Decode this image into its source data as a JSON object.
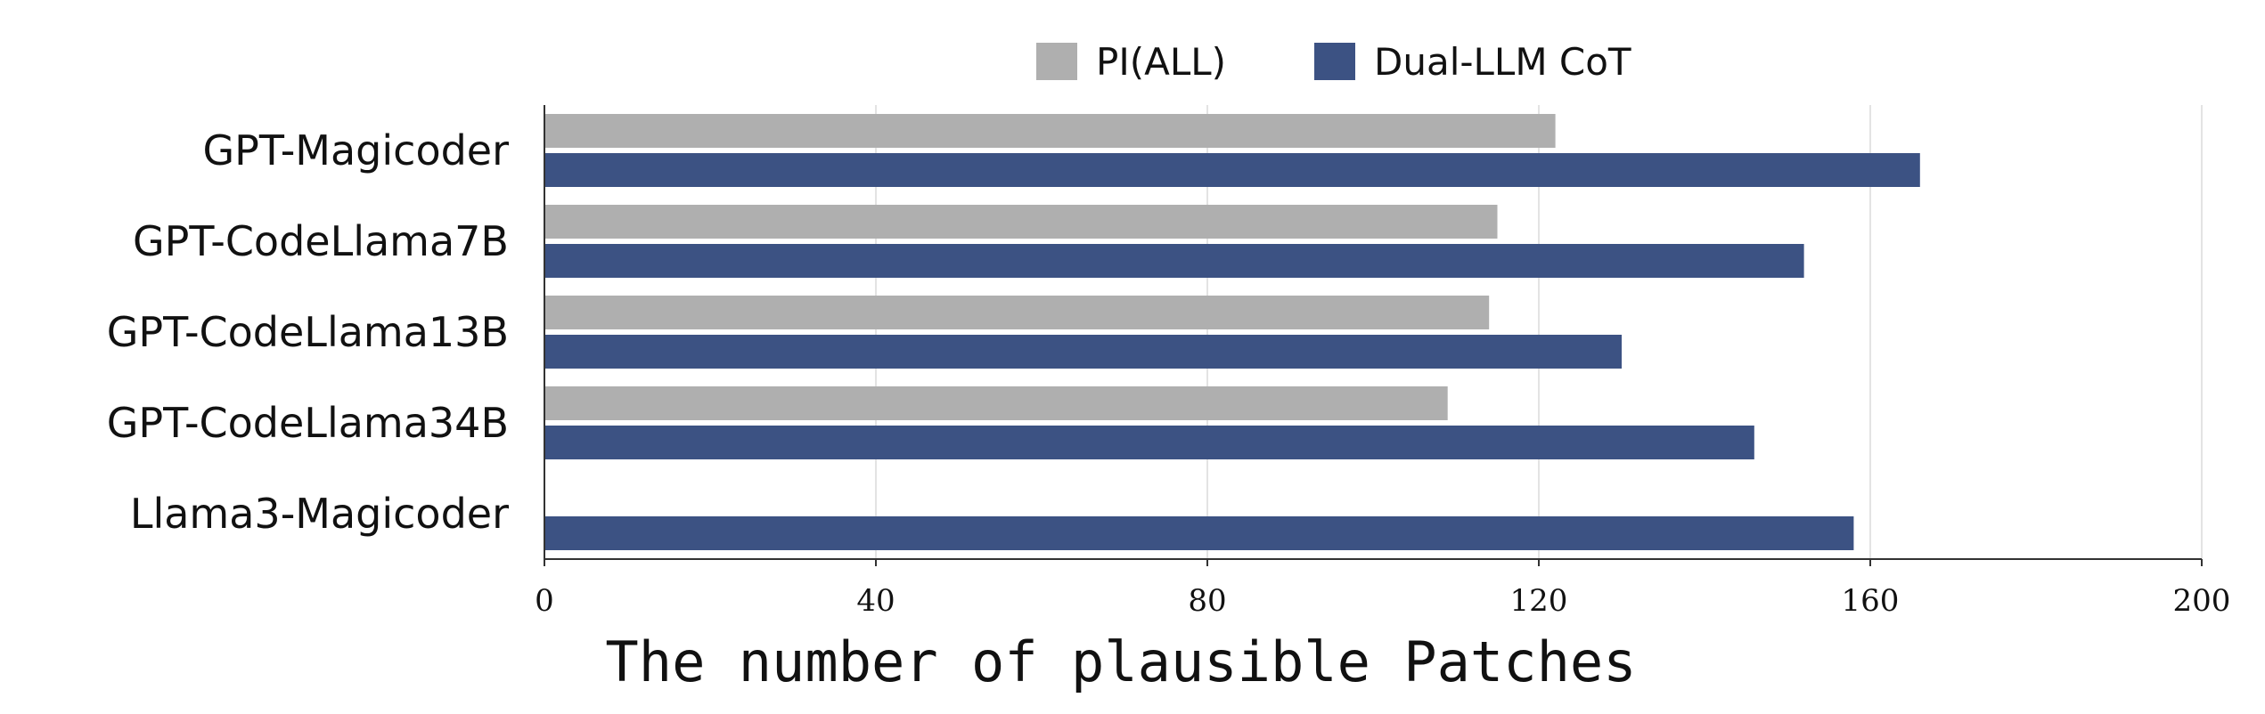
{
  "chart_data": {
    "type": "bar",
    "orientation": "horizontal",
    "title": "",
    "xlabel": "The number of plausible Patches",
    "ylabel": "",
    "xlim": [
      0,
      200
    ],
    "xticks": [
      0,
      40,
      80,
      120,
      160,
      200
    ],
    "grid": true,
    "legend_position": "top",
    "categories": [
      "GPT-Magicoder",
      "GPT-CodeLlama7B",
      "GPT-CodeLlama13B",
      "GPT-CodeLlama34B",
      "Llama3-Magicoder"
    ],
    "series": [
      {
        "name": "PI(ALL)",
        "color": "#afafaf",
        "values": [
          122,
          115,
          114,
          109,
          null
        ]
      },
      {
        "name": "Dual-LLM CoT",
        "color": "#3c5283",
        "values": [
          166,
          152,
          130,
          146,
          158
        ]
      }
    ]
  }
}
